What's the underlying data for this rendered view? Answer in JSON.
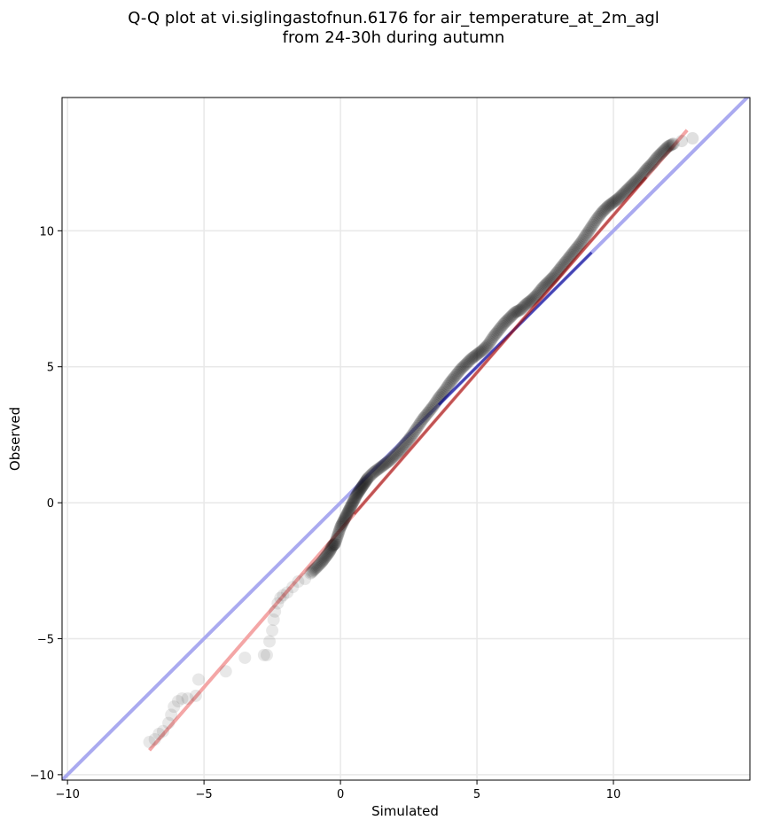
{
  "chart_data": {
    "type": "scatter",
    "title_line1": "Q-Q plot at vi.siglingastofnun.6176 for air_temperature_at_2m_agl",
    "title_line2": "from 24-30h during autumn",
    "xlabel": "Simulated",
    "ylabel": "Observed",
    "xlim": [
      -10.2,
      15.0
    ],
    "ylim": [
      -10.2,
      14.9
    ],
    "xticks": [
      -10,
      -5,
      0,
      5,
      10
    ],
    "yticks": [
      -10,
      -5,
      0,
      5,
      10
    ],
    "xtick_labels": [
      "−10",
      "−5",
      "0",
      "5",
      "10"
    ],
    "ytick_labels": [
      "−10",
      "−5",
      "0",
      "5",
      "10"
    ],
    "grid": true,
    "colors": {
      "points": "#000000",
      "identity_line": "#aaaaf0",
      "fit_line": "#f4a6a6",
      "inner_identity": "#00008b",
      "inner_fit": "#8b0000"
    },
    "identity_line": {
      "x": [
        -10.2,
        15.0
      ],
      "y": [
        -10.2,
        15.0
      ]
    },
    "fit_line": {
      "x": [
        -7.0,
        12.7
      ],
      "y": [
        -9.1,
        13.7
      ]
    },
    "quantile_points": {
      "x": [
        -7.0,
        -6.8,
        -6.65,
        -6.5,
        -6.3,
        -6.2,
        -6.1,
        -5.95,
        -5.8,
        -5.6,
        -5.3,
        -5.2,
        -4.2,
        -3.5,
        -2.8,
        -2.7,
        -2.6,
        -2.5,
        -2.45,
        -2.4,
        -2.3,
        -2.2,
        -2.1,
        -1.95,
        -1.75,
        -1.55,
        -1.3,
        -1.1,
        -0.9,
        -0.7,
        -0.55,
        -0.4,
        -0.3,
        -0.2,
        -0.1,
        0.0,
        0.1,
        0.2,
        0.3,
        0.4,
        0.5,
        0.6,
        0.7,
        0.8,
        0.9,
        1.0,
        1.2,
        1.4,
        1.6,
        1.8,
        2.0,
        2.2,
        2.4,
        2.6,
        2.8,
        3.0,
        3.2,
        3.4,
        3.6,
        3.8,
        4.0,
        4.2,
        4.4,
        4.6,
        4.8,
        5.0,
        5.2,
        5.4,
        5.6,
        5.8,
        6.0,
        6.2,
        6.4,
        6.6,
        6.8,
        7.0,
        7.2,
        7.4,
        7.6,
        7.8,
        8.0,
        8.2,
        8.4,
        8.6,
        8.8,
        9.0,
        9.2,
        9.4,
        9.6,
        9.8,
        10.0,
        10.2,
        10.4,
        10.6,
        10.8,
        11.0,
        11.2,
        11.4,
        11.6,
        11.8,
        12.0,
        12.2,
        12.5,
        12.9
      ],
      "y": [
        -8.8,
        -8.7,
        -8.5,
        -8.4,
        -8.1,
        -7.8,
        -7.5,
        -7.3,
        -7.2,
        -7.2,
        -7.1,
        -6.5,
        -6.2,
        -5.7,
        -5.6,
        -5.6,
        -5.1,
        -4.7,
        -4.3,
        -4.0,
        -3.7,
        -3.5,
        -3.4,
        -3.3,
        -3.1,
        -2.9,
        -2.8,
        -2.6,
        -2.4,
        -2.2,
        -2.0,
        -1.8,
        -1.6,
        -1.5,
        -1.2,
        -0.9,
        -0.7,
        -0.5,
        -0.3,
        -0.1,
        0.1,
        0.3,
        0.45,
        0.6,
        0.75,
        0.9,
        1.1,
        1.25,
        1.4,
        1.55,
        1.75,
        1.95,
        2.2,
        2.45,
        2.75,
        3.05,
        3.3,
        3.55,
        3.85,
        4.1,
        4.4,
        4.65,
        4.9,
        5.1,
        5.3,
        5.45,
        5.6,
        5.8,
        6.1,
        6.35,
        6.6,
        6.8,
        7.0,
        7.1,
        7.3,
        7.45,
        7.65,
        7.9,
        8.1,
        8.3,
        8.55,
        8.8,
        9.05,
        9.3,
        9.55,
        9.85,
        10.15,
        10.45,
        10.7,
        10.9,
        11.05,
        11.2,
        11.4,
        11.6,
        11.8,
        12.0,
        12.25,
        12.45,
        12.7,
        12.9,
        13.1,
        13.2,
        13.3,
        13.4
      ]
    }
  }
}
